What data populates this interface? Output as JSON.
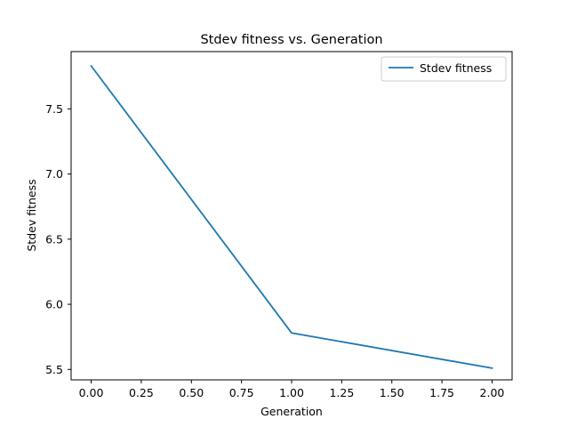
{
  "chart_data": {
    "type": "line",
    "title": "Stdev fitness vs. Generation",
    "xlabel": "Generation",
    "ylabel": "Stdev fitness",
    "xlim": [
      -0.1,
      2.1
    ],
    "ylim": [
      5.42,
      7.94
    ],
    "xticks": [
      0.0,
      0.25,
      0.5,
      0.75,
      1.0,
      1.25,
      1.5,
      1.75,
      2.0
    ],
    "xtick_labels": [
      "0.00",
      "0.25",
      "0.50",
      "0.75",
      "1.00",
      "1.25",
      "1.50",
      "1.75",
      "2.00"
    ],
    "yticks": [
      5.5,
      6.0,
      6.5,
      7.0,
      7.5
    ],
    "ytick_labels": [
      "5.5",
      "6.0",
      "6.5",
      "7.0",
      "7.5"
    ],
    "grid": false,
    "legend_position": "top-right",
    "series": [
      {
        "name": "Stdev fitness",
        "color": "#1f77b4",
        "x": [
          0,
          1,
          2
        ],
        "y": [
          7.83,
          5.78,
          5.51
        ]
      }
    ]
  }
}
